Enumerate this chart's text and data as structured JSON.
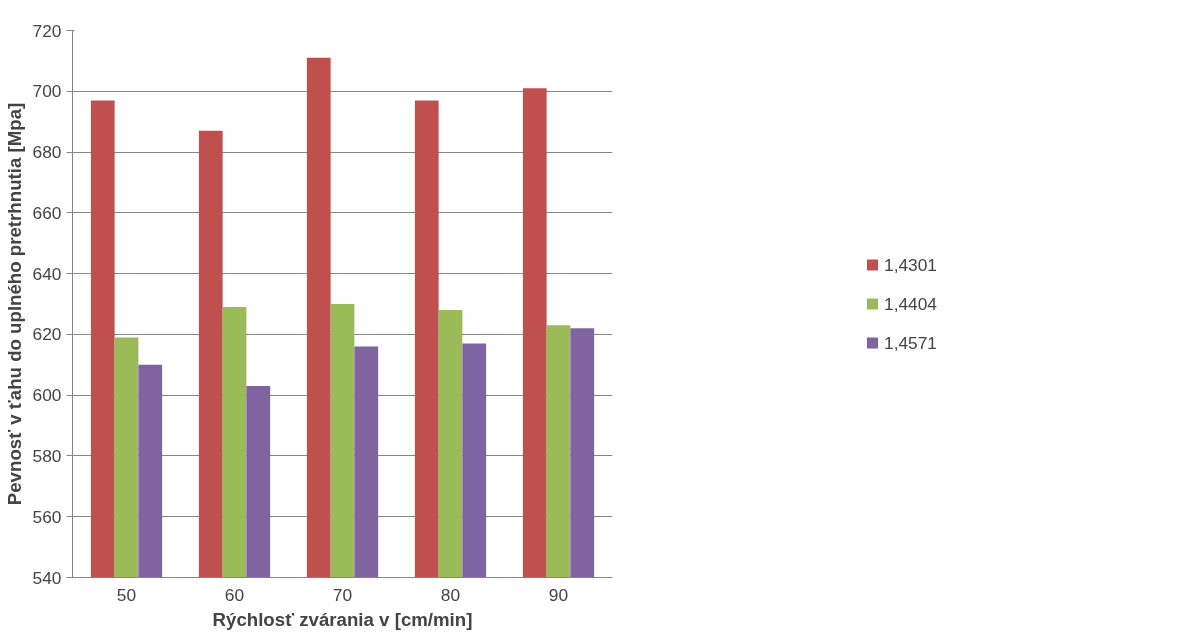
{
  "chart_data": {
    "type": "bar",
    "xlabel": "Rýchlosť zvárania v [cm/min]",
    "ylabel": "Pevnosť v ťahu do uplného pretrhnutia [Mpa]",
    "categories": [
      "50",
      "60",
      "70",
      "80",
      "90"
    ],
    "series": [
      {
        "name": "1,4301",
        "color": "#c0504d",
        "values": [
          697,
          687,
          711,
          697,
          701
        ]
      },
      {
        "name": "1,4404",
        "color": "#9bbb59",
        "values": [
          619,
          629,
          630,
          628,
          623
        ]
      },
      {
        "name": "1,4571",
        "color": "#8064a2",
        "values": [
          610,
          603,
          616,
          617,
          622
        ]
      }
    ],
    "ylim": [
      540,
      720
    ],
    "yticks": [
      540,
      560,
      580,
      600,
      620,
      640,
      660,
      680,
      700,
      720
    ],
    "grid": "y",
    "legend": "right"
  }
}
